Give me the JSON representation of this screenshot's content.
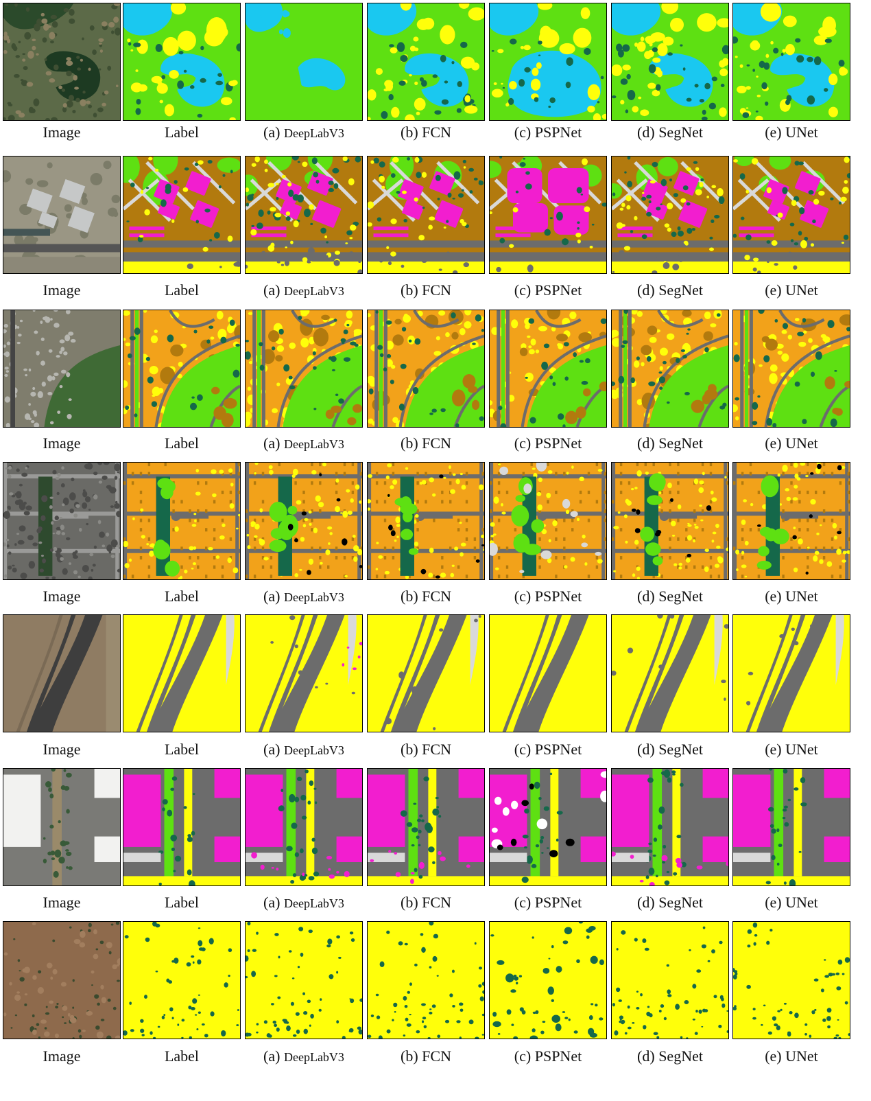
{
  "figure": {
    "columns": [
      {
        "key": "image",
        "caption": "Image"
      },
      {
        "key": "label",
        "caption": "Label"
      },
      {
        "key": "deeplab",
        "prefix": "(a) ",
        "name": "DeepLabV3"
      },
      {
        "key": "fcn",
        "prefix": "(b) ",
        "name": "FCN"
      },
      {
        "key": "pspnet",
        "prefix": "(c) ",
        "name": "PSPNet"
      },
      {
        "key": "segnet",
        "prefix": "(d) ",
        "name": "SegNet"
      },
      {
        "key": "unet",
        "prefix": "(e) ",
        "name": "UNet"
      }
    ],
    "rows": [
      {
        "scene": "pond",
        "image_bg": "#5f6b4a"
      },
      {
        "scene": "buildings",
        "image_bg": "#8a8a7a"
      },
      {
        "scene": "golf-residential",
        "image_bg": "#6f7a5f"
      },
      {
        "scene": "residential-grid",
        "image_bg": "#6d6d6a"
      },
      {
        "scene": "highway",
        "image_bg": "#8d7a62"
      },
      {
        "scene": "industrial",
        "image_bg": "#7c7c78"
      },
      {
        "scene": "desert",
        "image_bg": "#8b6a4c"
      }
    ],
    "palette": {
      "grass": "#5ee012",
      "water": "#1ac8f0",
      "building": "#f21ecf",
      "road": "#6c6c6c",
      "bare_soil": "#ffff0a",
      "tree": "#15684a",
      "house": "#f2a21a",
      "dirt": "#b27a0e",
      "pavement": "#d9d9d9",
      "white": "#ffffff",
      "black": "#000000"
    }
  }
}
